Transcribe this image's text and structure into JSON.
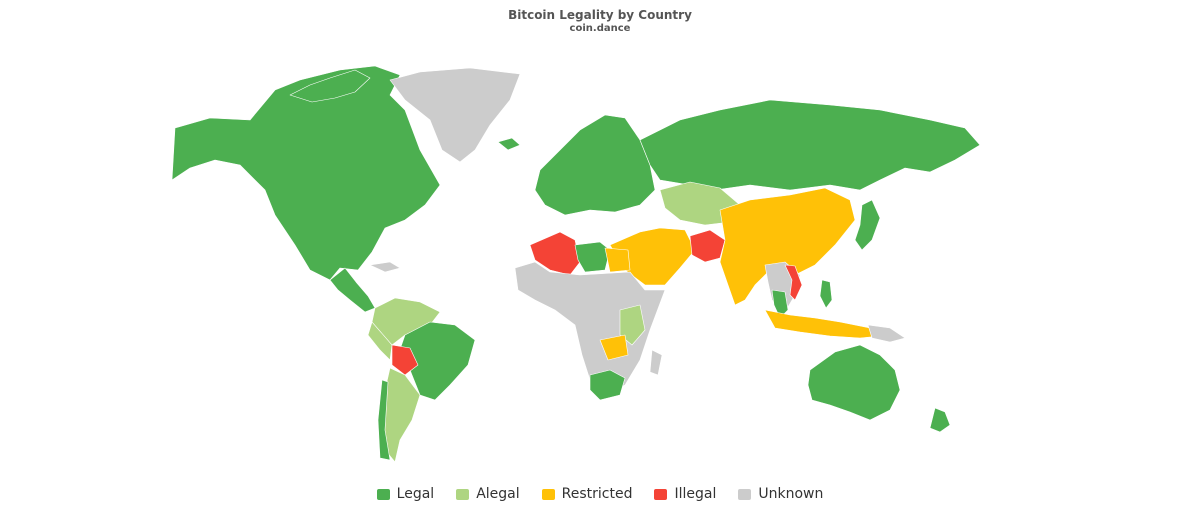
{
  "title": "Bitcoin Legality by Country",
  "subtitle": "coin.dance",
  "colors": {
    "legal": "#4caf50",
    "alegal": "#aed581",
    "restricted": "#ffc107",
    "illegal": "#f44336",
    "unknown": "#cccccc"
  },
  "legend": [
    {
      "label": "Legal",
      "color": "#4caf50"
    },
    {
      "label": "Alegal",
      "color": "#aed581"
    },
    {
      "label": "Restricted",
      "color": "#ffc107"
    },
    {
      "label": "Illegal",
      "color": "#f44336"
    },
    {
      "label": "Unknown",
      "color": "#cccccc"
    }
  ]
}
